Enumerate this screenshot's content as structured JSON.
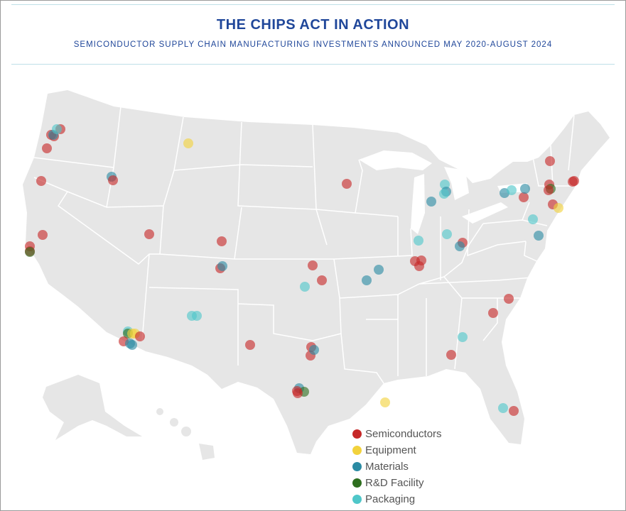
{
  "header": {
    "title": "THE CHIPS ACT IN ACTION",
    "subtitle": "SEMICONDUCTOR SUPPLY CHAIN MANUFACTURING INVESTMENTS ANNOUNCED MAY 2020-AUGUST 2024"
  },
  "legend": [
    {
      "key": "semi",
      "label": "Semiconductors",
      "color": "#c62828"
    },
    {
      "key": "equip",
      "label": "Equipment",
      "color": "#f2d23c"
    },
    {
      "key": "mat",
      "label": "Materials",
      "color": "#2b8ba3"
    },
    {
      "key": "rd",
      "label": "R&D Facility",
      "color": "#2e6e1e"
    },
    {
      "key": "pack",
      "label": "Packaging",
      "color": "#4fc7c9"
    }
  ],
  "map": {
    "land_color": "#e6e6e6",
    "border_color": "#ffffff",
    "water_color": "#ffffff"
  },
  "markers": [
    {
      "type": "semi",
      "site": "Portland OR"
    },
    {
      "type": "semi",
      "site": "Hillsboro OR"
    },
    {
      "type": "semi",
      "site": "Gresham OR"
    },
    {
      "type": "mat",
      "site": "Hillsboro OR"
    },
    {
      "type": "pack",
      "site": "Vancouver WA"
    },
    {
      "type": "semi",
      "site": "Eugene OR"
    },
    {
      "type": "semi",
      "site": "Northern CA"
    },
    {
      "type": "semi",
      "site": "Sacramento CA"
    },
    {
      "type": "semi",
      "site": "Bay Area CA"
    },
    {
      "type": "semi",
      "site": "San Jose CA"
    },
    {
      "type": "rd",
      "site": "Silicon Valley CA"
    },
    {
      "type": "mat",
      "site": "Boise ID"
    },
    {
      "type": "semi",
      "site": "Boise ID"
    },
    {
      "type": "equip",
      "site": "Montana"
    },
    {
      "type": "semi",
      "site": "Utah"
    },
    {
      "type": "semi",
      "site": "Colorado Springs CO"
    },
    {
      "type": "semi",
      "site": "Colorado"
    },
    {
      "type": "mat",
      "site": "Colorado"
    },
    {
      "type": "pack",
      "site": "Albuquerque NM"
    },
    {
      "type": "pack",
      "site": "Rio Rancho NM"
    },
    {
      "type": "pack",
      "site": "Phoenix AZ"
    },
    {
      "type": "rd",
      "site": "Phoenix AZ"
    },
    {
      "type": "equip",
      "site": "Phoenix AZ"
    },
    {
      "type": "equip",
      "site": "Chandler AZ"
    },
    {
      "type": "semi",
      "site": "Mesa AZ"
    },
    {
      "type": "semi",
      "site": "Tempe AZ"
    },
    {
      "type": "mat",
      "site": "Phoenix AZ"
    },
    {
      "type": "mat",
      "site": "Casa Grande AZ"
    },
    {
      "type": "semi",
      "site": "Lubbock TX"
    },
    {
      "type": "semi",
      "site": "Kansas"
    },
    {
      "type": "semi",
      "site": "Wichita KS"
    },
    {
      "type": "pack",
      "site": "Kansas"
    },
    {
      "type": "semi",
      "site": "Sherman TX"
    },
    {
      "type": "semi",
      "site": "Dallas TX"
    },
    {
      "type": "mat",
      "site": "Dallas TX"
    },
    {
      "type": "mat",
      "site": "Austin TX"
    },
    {
      "type": "rd",
      "site": "Austin TX"
    },
    {
      "type": "semi",
      "site": "Austin TX"
    },
    {
      "type": "semi",
      "site": "San Antonio TX"
    },
    {
      "type": "equip",
      "site": "Louisiana"
    },
    {
      "type": "semi",
      "site": "Minnesota"
    },
    {
      "type": "mat",
      "site": "Missouri"
    },
    {
      "type": "mat",
      "site": "St. Louis MO"
    },
    {
      "type": "pack",
      "site": "Michigan"
    },
    {
      "type": "mat",
      "site": "Michigan"
    },
    {
      "type": "pack",
      "site": "Michigan"
    },
    {
      "type": "mat",
      "site": "Midland MI"
    },
    {
      "type": "pack",
      "site": "Indiana"
    },
    {
      "type": "semi",
      "site": "Kokomo IN"
    },
    {
      "type": "semi",
      "site": "Indiana"
    },
    {
      "type": "semi",
      "site": "Indiana"
    },
    {
      "type": "pack",
      "site": "Ohio"
    },
    {
      "type": "semi",
      "site": "Columbus OH"
    },
    {
      "type": "mat",
      "site": "Ohio"
    },
    {
      "type": "semi",
      "site": "North Carolina"
    },
    {
      "type": "semi",
      "site": "Raleigh NC"
    },
    {
      "type": "pack",
      "site": "Georgia"
    },
    {
      "type": "semi",
      "site": "Georgia"
    },
    {
      "type": "pack",
      "site": "Florida"
    },
    {
      "type": "semi",
      "site": "Florida"
    },
    {
      "type": "pack",
      "site": "Pennsylvania"
    },
    {
      "type": "mat",
      "site": "Delaware"
    },
    {
      "type": "semi",
      "site": "New Jersey"
    },
    {
      "type": "equip",
      "site": "New York City NY"
    },
    {
      "type": "semi",
      "site": "Syracuse NY"
    },
    {
      "type": "mat",
      "site": "Syracuse NY"
    },
    {
      "type": "mat",
      "site": "Buffalo NY"
    },
    {
      "type": "pack",
      "site": "Western NY"
    },
    {
      "type": "semi",
      "site": "Upstate NY"
    },
    {
      "type": "semi",
      "site": "Malta NY"
    },
    {
      "type": "rd",
      "site": "Albany NY"
    },
    {
      "type": "semi",
      "site": "Albany NY"
    },
    {
      "type": "semi",
      "site": "Massachusetts"
    },
    {
      "type": "semi",
      "site": "Massachusetts"
    }
  ]
}
